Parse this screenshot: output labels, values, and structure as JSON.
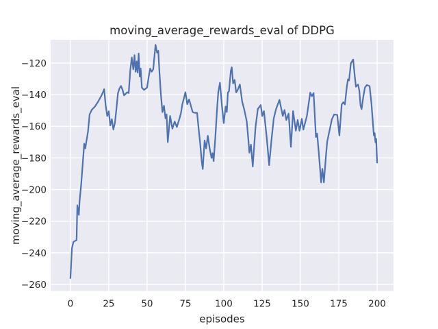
{
  "chart_data": {
    "type": "line",
    "title": "moving_average_rewards_eval of DDPG",
    "xlabel": "episodes",
    "ylabel": "moving_average_rewards_eval",
    "xlim": [
      -12.9,
      210.7
    ],
    "ylim": [
      -264.1,
      -105.3
    ],
    "xticks": [
      0,
      25,
      50,
      75,
      100,
      125,
      150,
      175,
      200
    ],
    "yticks": [
      -120,
      -140,
      -160,
      -180,
      -200,
      -220,
      -240,
      -260
    ],
    "grid": true,
    "legend": "none",
    "style": "seaborn-darkgrid",
    "colors": {
      "line": "#4c72b0",
      "plot_background": "#eaeaf2",
      "grid": "#ffffff",
      "text": "#262626",
      "figure_background": "#ffffff"
    },
    "series_name": "moving_average_rewards_eval",
    "points": [
      [
        0,
        -256
      ],
      [
        1,
        -237
      ],
      [
        2,
        -233
      ],
      [
        3,
        -232.5
      ],
      [
        4,
        -232
      ],
      [
        4.5,
        -210
      ],
      [
        5.5,
        -216
      ],
      [
        6,
        -207
      ],
      [
        7,
        -197
      ],
      [
        8,
        -184
      ],
      [
        9,
        -171
      ],
      [
        9.7,
        -174
      ],
      [
        10.5,
        -169
      ],
      [
        11.5,
        -163
      ],
      [
        12.5,
        -152.5
      ],
      [
        14,
        -149.5
      ],
      [
        16,
        -147.5
      ],
      [
        18,
        -144.5
      ],
      [
        20,
        -141
      ],
      [
        21,
        -139
      ],
      [
        22,
        -136.5
      ],
      [
        23,
        -147
      ],
      [
        24,
        -153.5
      ],
      [
        25,
        -150.5
      ],
      [
        26,
        -159.5
      ],
      [
        27,
        -155.5
      ],
      [
        28,
        -162
      ],
      [
        29,
        -158
      ],
      [
        30,
        -149
      ],
      [
        31,
        -139
      ],
      [
        32,
        -136
      ],
      [
        33,
        -134.5
      ],
      [
        34,
        -137
      ],
      [
        35,
        -140.5
      ],
      [
        36,
        -139.5
      ],
      [
        37,
        -138.5
      ],
      [
        38,
        -139
      ],
      [
        39,
        -125
      ],
      [
        40,
        -116.5
      ],
      [
        41,
        -124
      ],
      [
        41.8,
        -115
      ],
      [
        42.5,
        -125.5
      ],
      [
        43.2,
        -119
      ],
      [
        43.8,
        -126
      ],
      [
        44.5,
        -114
      ],
      [
        45.2,
        -128.5
      ],
      [
        45.8,
        -123.5
      ],
      [
        46.6,
        -135.5
      ],
      [
        48,
        -137
      ],
      [
        50,
        -135.5
      ],
      [
        51,
        -129
      ],
      [
        52,
        -123.5
      ],
      [
        53,
        -125.5
      ],
      [
        54,
        -124
      ],
      [
        55.5,
        -108.5
      ],
      [
        56.5,
        -113.5
      ],
      [
        57.3,
        -112.3
      ],
      [
        58,
        -125
      ],
      [
        59,
        -140
      ],
      [
        60,
        -151
      ],
      [
        61,
        -147
      ],
      [
        62,
        -155
      ],
      [
        62.7,
        -152.5
      ],
      [
        63.5,
        -170
      ],
      [
        65,
        -153.5
      ],
      [
        66.5,
        -161.5
      ],
      [
        68,
        -157
      ],
      [
        69.4,
        -160.5
      ],
      [
        71,
        -155.5
      ],
      [
        72,
        -152
      ],
      [
        73,
        -146
      ],
      [
        75,
        -138.5
      ],
      [
        76.2,
        -146
      ],
      [
        77.4,
        -143
      ],
      [
        79.7,
        -151
      ],
      [
        81,
        -151.5
      ],
      [
        82.6,
        -151.5
      ],
      [
        83.7,
        -162.5
      ],
      [
        84.5,
        -169.7
      ],
      [
        85.6,
        -182
      ],
      [
        86.3,
        -187
      ],
      [
        87.5,
        -169
      ],
      [
        88.5,
        -174
      ],
      [
        89.6,
        -166
      ],
      [
        90.8,
        -174
      ],
      [
        92,
        -180
      ],
      [
        92.7,
        -177
      ],
      [
        93.4,
        -182
      ],
      [
        94.5,
        -167
      ],
      [
        95.5,
        -151
      ],
      [
        96.4,
        -138.6
      ],
      [
        97.5,
        -132.5
      ],
      [
        98.9,
        -148
      ],
      [
        100,
        -158
      ],
      [
        101.2,
        -147.5
      ],
      [
        102,
        -151
      ],
      [
        102.7,
        -138.6
      ],
      [
        103.4,
        -137.9
      ],
      [
        104.6,
        -124.9
      ],
      [
        105.2,
        -122.7
      ],
      [
        106.1,
        -132.9
      ],
      [
        107.1,
        -130.7
      ],
      [
        108.1,
        -138.6
      ],
      [
        109,
        -137.2
      ],
      [
        110.5,
        -133.6
      ],
      [
        112,
        -144.4
      ],
      [
        113.5,
        -150
      ],
      [
        115,
        -157
      ],
      [
        116,
        -168
      ],
      [
        116.7,
        -176.7
      ],
      [
        117.7,
        -171.6
      ],
      [
        118.9,
        -185.4
      ],
      [
        120.7,
        -160.7
      ],
      [
        122.2,
        -149.1
      ],
      [
        124.1,
        -146.6
      ],
      [
        125.1,
        -153.5
      ],
      [
        126.2,
        -150.4
      ],
      [
        128.1,
        -168
      ],
      [
        129.6,
        -184.6
      ],
      [
        131.1,
        -168.7
      ],
      [
        132.6,
        -155
      ],
      [
        134.1,
        -149.1
      ],
      [
        136.3,
        -143.3
      ],
      [
        138.5,
        -153.5
      ],
      [
        139.6,
        -149.7
      ],
      [
        140.8,
        -156
      ],
      [
        142.3,
        -152
      ],
      [
        143.8,
        -173
      ],
      [
        145.2,
        -150.4
      ],
      [
        147,
        -162.8
      ],
      [
        148.2,
        -156
      ],
      [
        149.4,
        -162.8
      ],
      [
        150.9,
        -155.3
      ],
      [
        151.9,
        -162.1
      ],
      [
        154.2,
        -153.5
      ],
      [
        156.4,
        -138.7
      ],
      [
        157.5,
        -141
      ],
      [
        158.6,
        -139
      ],
      [
        160.1,
        -166.8
      ],
      [
        160.9,
        -164.6
      ],
      [
        162,
        -177
      ],
      [
        163.5,
        -195.5
      ],
      [
        164.3,
        -186.9
      ],
      [
        165.3,
        -195.5
      ],
      [
        166.8,
        -176.7
      ],
      [
        167.5,
        -169.4
      ],
      [
        169.1,
        -162.1
      ],
      [
        170.5,
        -155.6
      ],
      [
        172,
        -152.5
      ],
      [
        174,
        -152.8
      ],
      [
        175.4,
        -165.8
      ],
      [
        176.9,
        -146.2
      ],
      [
        178,
        -144.8
      ],
      [
        179,
        -146.2
      ],
      [
        180.2,
        -135.4
      ],
      [
        181,
        -130.3
      ],
      [
        181.7,
        -131
      ],
      [
        182.9,
        -120.1
      ],
      [
        184.4,
        -117.8
      ],
      [
        185.4,
        -128.1
      ],
      [
        186.2,
        -135
      ],
      [
        187.6,
        -133.6
      ],
      [
        188.4,
        -137.5
      ],
      [
        189.2,
        -147
      ],
      [
        189.9,
        -149.1
      ],
      [
        191,
        -141.2
      ],
      [
        192.1,
        -135.4
      ],
      [
        193.3,
        -133.9
      ],
      [
        195.1,
        -134.6
      ],
      [
        196.3,
        -145.5
      ],
      [
        197.3,
        -158.6
      ],
      [
        197.9,
        -165.8
      ],
      [
        198.4,
        -164.3
      ],
      [
        198.9,
        -170.1
      ],
      [
        199.4,
        -167.9
      ],
      [
        200,
        -183
      ]
    ]
  }
}
